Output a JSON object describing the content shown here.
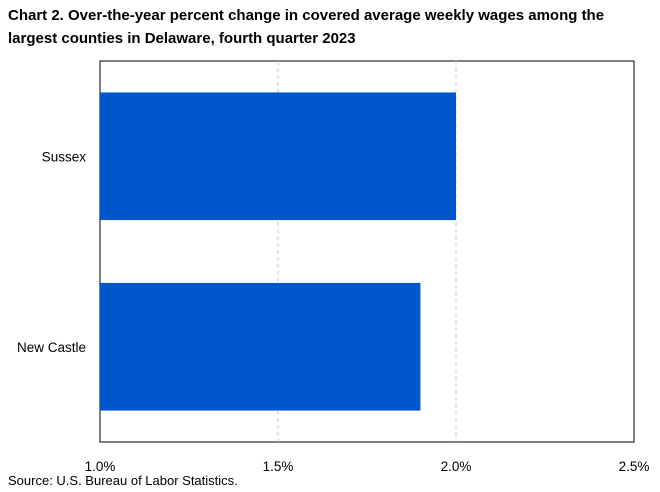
{
  "chart_data": {
    "type": "bar",
    "orientation": "horizontal",
    "title": "Chart 2. Over-the-year percent change in covered average weekly wages among the largest counties in Delaware, fourth quarter 2023",
    "categories": [
      "Sussex",
      "New Castle"
    ],
    "values": [
      2.0,
      1.9
    ],
    "xlim": [
      1.0,
      2.5
    ],
    "xticks": [
      1.0,
      1.5,
      2.0,
      2.5
    ],
    "xtick_labels": [
      "1.0%",
      "1.5%",
      "2.0%",
      "2.5%"
    ],
    "xlabel": "",
    "ylabel": "",
    "grid": "vertical dashed",
    "legend": "none",
    "bar_color": "#0057CC"
  },
  "source": "Source: U.S. Bureau of Labor Statistics."
}
